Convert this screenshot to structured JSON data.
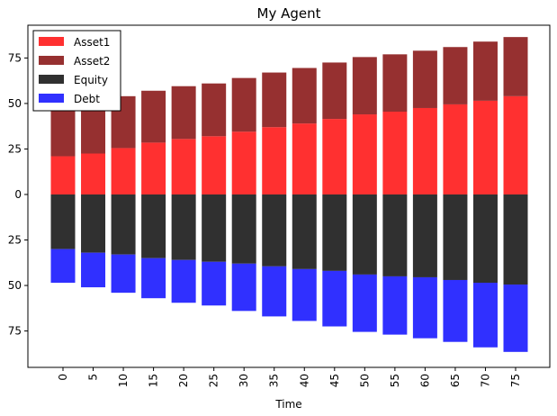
{
  "chart_data": {
    "type": "bar",
    "stacked": true,
    "title": "My Agent",
    "xlabel": "Time",
    "ylabel": "",
    "categories": [
      "0",
      "5",
      "10",
      "15",
      "20",
      "25",
      "30",
      "35",
      "40",
      "45",
      "50",
      "55",
      "60",
      "65",
      "70",
      "75"
    ],
    "yticks": [
      75,
      50,
      25,
      0,
      -25,
      -50,
      -75
    ],
    "ytick_labels": [
      "75",
      "50",
      "25",
      "0",
      "25",
      "50",
      "75"
    ],
    "ylim": [
      -95,
      93
    ],
    "grid": false,
    "legend_position": "top-left",
    "series": [
      {
        "name": "Asset1",
        "color": "#ff1a1a",
        "stack": "positive",
        "values": [
          21,
          22.5,
          25.5,
          28.5,
          30.5,
          32,
          34.5,
          37,
          39,
          41.5,
          44,
          45.5,
          47.5,
          49.5,
          51.5,
          54
        ]
      },
      {
        "name": "Asset2",
        "color": "#8b1a1a",
        "stack": "positive",
        "values": [
          27.5,
          28.5,
          28.5,
          28.5,
          29,
          29,
          29.5,
          30,
          30.5,
          31,
          31.5,
          31.5,
          31.5,
          31.5,
          32.5,
          32.5
        ]
      },
      {
        "name": "Equity",
        "color": "#1a1a1a",
        "stack": "negative",
        "values": [
          -30,
          -32,
          -33,
          -35,
          -36,
          -37,
          -38,
          -39.5,
          -41,
          -42,
          -44,
          -45,
          -45.5,
          -47,
          -48.5,
          -49.5
        ]
      },
      {
        "name": "Debt",
        "color": "#1a1aff",
        "stack": "negative",
        "values": [
          -18.5,
          -19,
          -21,
          -22,
          -23.5,
          -24,
          -26,
          -27.5,
          -28.5,
          -30.5,
          -31.5,
          -32,
          -33.5,
          -34,
          -35.5,
          -37
        ]
      }
    ]
  }
}
